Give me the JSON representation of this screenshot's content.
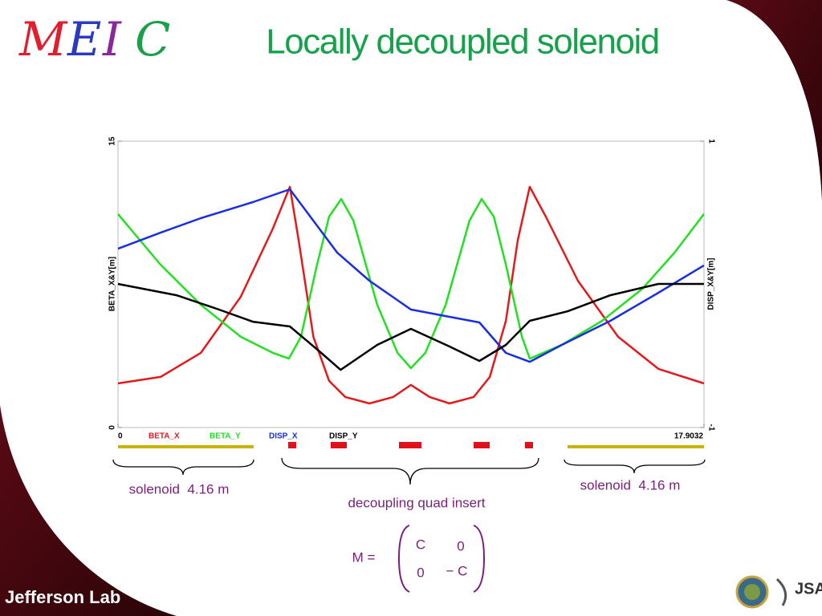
{
  "header": {
    "logo": [
      "M",
      "E",
      "I",
      "C"
    ],
    "title": "Locally decoupled solenoid"
  },
  "chart_data": {
    "type": "line",
    "ylabel": "BETA_X&Y[m]",
    "y2label": "DISP_X&Y[m]",
    "xlim": [
      0,
      17.9032
    ],
    "xticks": [
      0,
      17.9032
    ],
    "ylim": [
      0,
      15
    ],
    "yticks": [
      0,
      15
    ],
    "y2lim": [
      -1,
      1
    ],
    "y2ticks": [
      -1,
      1
    ],
    "series": [
      {
        "name": "BETA_X",
        "color": "#e31a1c",
        "x": [
          0,
          1.3,
          2.53,
          3.75,
          4.73,
          5.25,
          5.52,
          5.97,
          6.45,
          6.94,
          7.68,
          8.41,
          8.95,
          9.52,
          10.13,
          10.87,
          11.36,
          11.85,
          12.21,
          12.58,
          13.07,
          14.05,
          15.28,
          16.51,
          17.9
        ],
        "values": [
          2.31,
          2.65,
          3.91,
          6.85,
          10.42,
          12.61,
          9.79,
          4.75,
          2.44,
          1.6,
          1.26,
          1.6,
          2.23,
          1.6,
          1.26,
          1.6,
          2.65,
          5.59,
          9.79,
          12.61,
          11.05,
          7.69,
          4.75,
          3.07,
          2.31
        ]
      },
      {
        "name": "BETA_Y",
        "color": "#22e022",
        "x": [
          0,
          1.3,
          2.53,
          3.75,
          4.73,
          5.22,
          5.59,
          6.08,
          6.45,
          6.82,
          7.19,
          7.92,
          8.54,
          8.95,
          9.39,
          10.01,
          10.74,
          11.11,
          11.48,
          11.85,
          12.34,
          12.58,
          13.56,
          14.79,
          16.02,
          17.0,
          17.9
        ],
        "values": [
          11.18,
          8.53,
          6.43,
          4.75,
          3.91,
          3.61,
          4.75,
          8.53,
          11.05,
          11.97,
          10.84,
          6.43,
          3.91,
          3.11,
          3.91,
          6.43,
          10.84,
          11.97,
          11.05,
          8.53,
          4.75,
          3.61,
          4.33,
          5.59,
          7.27,
          9.16,
          11.18
        ]
      },
      {
        "name": "DISP_X",
        "color": "#1a2ee0",
        "axis": "y2",
        "x": [
          0,
          1.3,
          2.53,
          4.12,
          5.25,
          6.7,
          7.68,
          8.95,
          10.13,
          11.04,
          11.85,
          12.58,
          13.56,
          15.04,
          16.51,
          17.9
        ],
        "values": [
          0.249,
          0.361,
          0.462,
          0.574,
          0.664,
          0.221,
          0.025,
          -0.176,
          -0.227,
          -0.266,
          -0.479,
          -0.541,
          -0.423,
          -0.255,
          -0.059,
          0.132
        ]
      },
      {
        "name": "DISP_Y",
        "color": "#000000",
        "axis": "y2",
        "x": [
          0,
          1.79,
          3.02,
          4.12,
          5.25,
          6.21,
          6.8,
          7.92,
          8.95,
          10.13,
          11.04,
          11.85,
          12.58,
          13.74,
          15.04,
          16.51,
          17.9
        ],
        "values": [
          0.003,
          -0.076,
          -0.171,
          -0.261,
          -0.294,
          -0.479,
          -0.597,
          -0.423,
          -0.311,
          -0.434,
          -0.535,
          -0.423,
          -0.255,
          -0.188,
          -0.076,
          0.003,
          0.003
        ]
      }
    ]
  },
  "annotations": {
    "solenoid_left": "solenoid  4.16 m",
    "quad_insert": "decoupling quad insert",
    "solenoid_right": "solenoid  4.16 m"
  },
  "matrix": {
    "lhs": "M =",
    "cells": [
      [
        "C",
        "0"
      ],
      [
        "0",
        "− C"
      ]
    ]
  },
  "footer": {
    "lab": "Jefferson Lab",
    "jsa": "JSA"
  }
}
